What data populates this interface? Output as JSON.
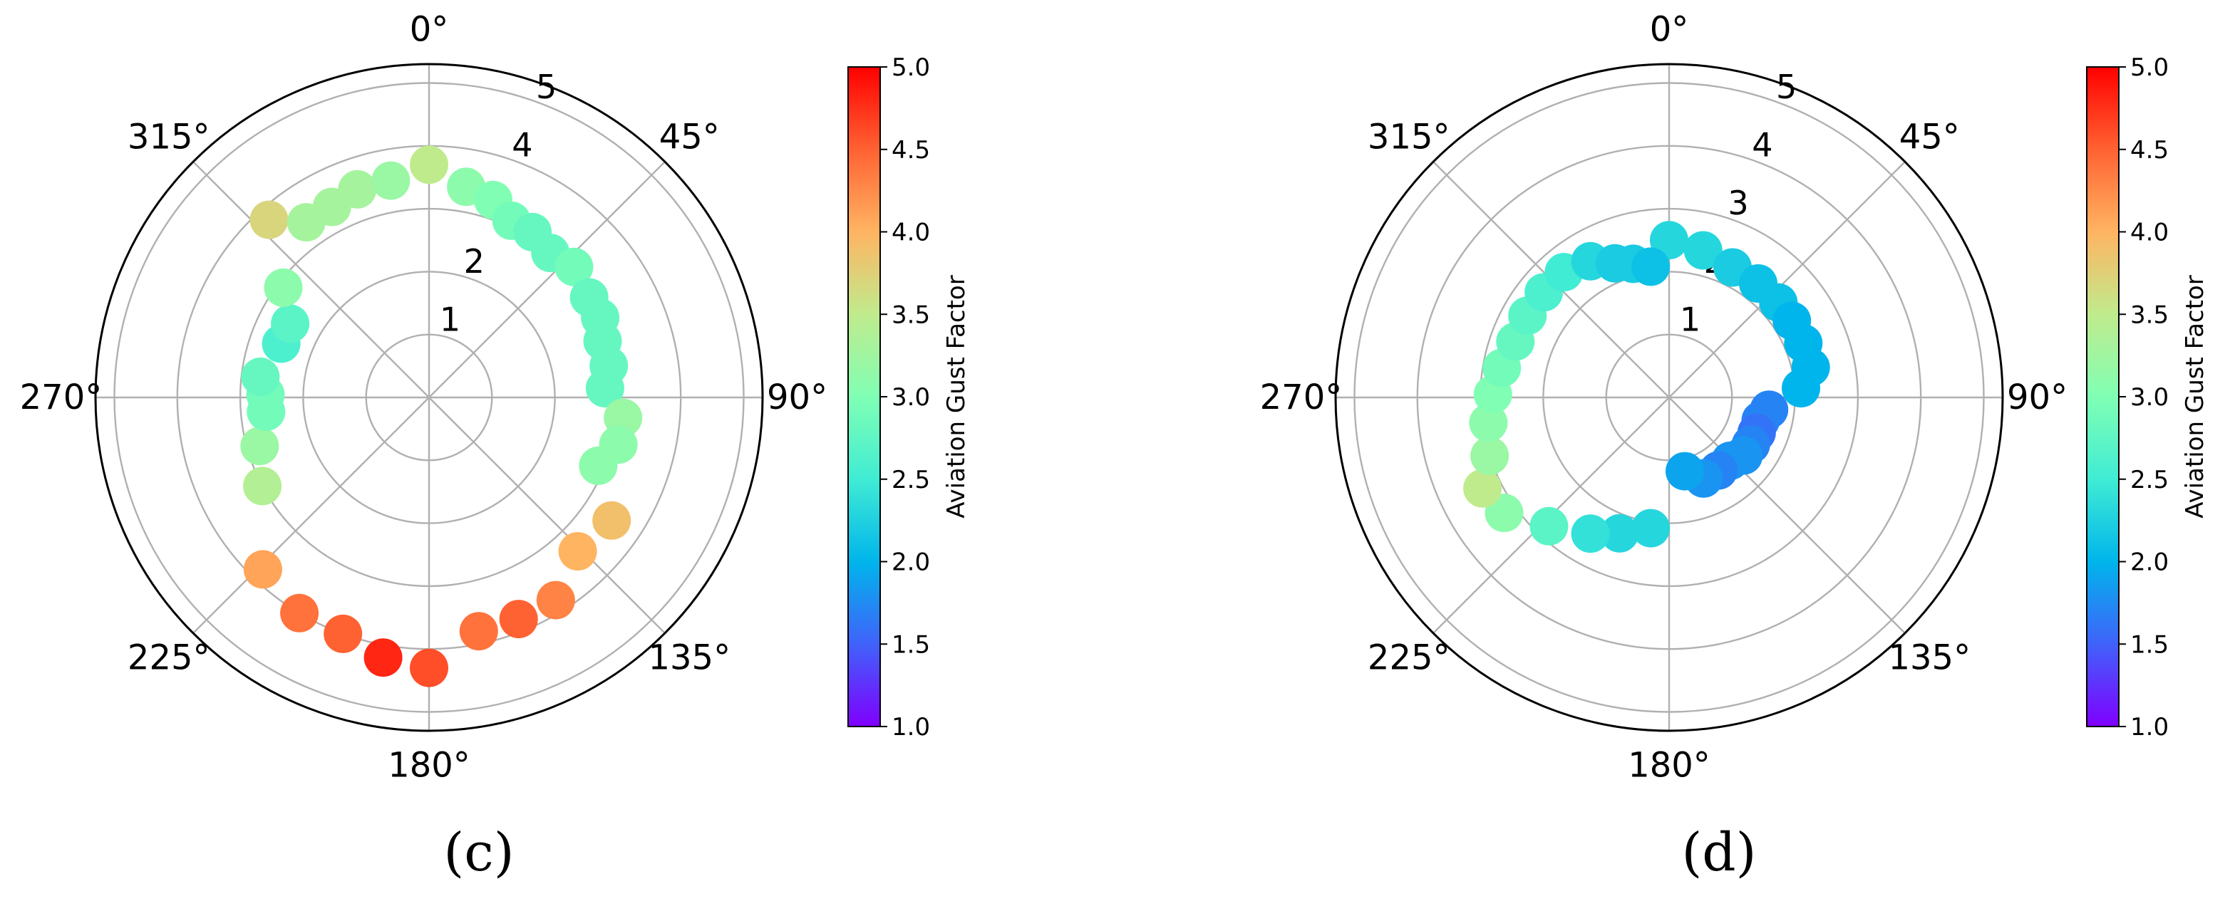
{
  "chart_data": [
    {
      "type": "scatter",
      "panel_label": "(c)",
      "projection": "polar",
      "theta_direction": "clockwise",
      "theta_zero": "top",
      "theta_ticks": [
        "0°",
        "45°",
        "90°",
        "135°",
        "180°",
        "225°",
        "270°",
        "315°"
      ],
      "r_ticks": [
        "1",
        "2",
        "3",
        "4",
        "5"
      ],
      "rlim": [
        0,
        5.3
      ],
      "grid": true,
      "colormap": "rainbow",
      "clim": [
        1.0,
        5.0
      ],
      "colorbar_label": "Aviation Gust Factor",
      "colorbar_ticks": [
        "1.0",
        "1.5",
        "2.0",
        "2.5",
        "3.0",
        "3.5",
        "4.0",
        "4.5",
        "5.0"
      ],
      "points": [
        {
          "theta": 0,
          "r": 3.7,
          "c": 3.5
        },
        {
          "theta": 10,
          "r": 3.4,
          "c": 3.1
        },
        {
          "theta": 18,
          "r": 3.3,
          "c": 3.0
        },
        {
          "theta": 25,
          "r": 3.1,
          "c": 2.9
        },
        {
          "theta": 32,
          "r": 3.1,
          "c": 2.8
        },
        {
          "theta": 40,
          "r": 3.0,
          "c": 2.8
        },
        {
          "theta": 48,
          "r": 3.1,
          "c": 2.9
        },
        {
          "theta": 58,
          "r": 3.0,
          "c": 2.8
        },
        {
          "theta": 65,
          "r": 3.0,
          "c": 2.8
        },
        {
          "theta": 72,
          "r": 2.9,
          "c": 2.8
        },
        {
          "theta": 80,
          "r": 2.9,
          "c": 2.8
        },
        {
          "theta": 87,
          "r": 2.8,
          "c": 2.8
        },
        {
          "theta": 96,
          "r": 3.1,
          "c": 3.2
        },
        {
          "theta": 104,
          "r": 3.1,
          "c": 3.1
        },
        {
          "theta": 112,
          "r": 2.9,
          "c": 3.1
        },
        {
          "theta": 124,
          "r": 3.5,
          "c": 3.9
        },
        {
          "theta": 136,
          "r": 3.4,
          "c": 4.0
        },
        {
          "theta": 148,
          "r": 3.8,
          "c": 4.3
        },
        {
          "theta": 158,
          "r": 3.8,
          "c": 4.5
        },
        {
          "theta": 168,
          "r": 3.8,
          "c": 4.4
        },
        {
          "theta": 180,
          "r": 4.3,
          "c": 4.6
        },
        {
          "theta": 190,
          "r": 4.2,
          "c": 4.8
        },
        {
          "theta": 200,
          "r": 4.0,
          "c": 4.5
        },
        {
          "theta": 211,
          "r": 4.0,
          "c": 4.4
        },
        {
          "theta": 224,
          "r": 3.8,
          "c": 4.1
        },
        {
          "theta": 242,
          "r": 3.0,
          "c": 3.4
        },
        {
          "theta": 254,
          "r": 2.8,
          "c": 3.2
        },
        {
          "theta": 265,
          "r": 2.6,
          "c": 2.9
        },
        {
          "theta": 271,
          "r": 2.6,
          "c": 2.9
        },
        {
          "theta": 277,
          "r": 2.7,
          "c": 2.8
        },
        {
          "theta": 290,
          "r": 2.5,
          "c": 2.6
        },
        {
          "theta": 298,
          "r": 2.5,
          "c": 2.7
        },
        {
          "theta": 307,
          "r": 2.9,
          "c": 3.1
        },
        {
          "theta": 318,
          "r": 3.8,
          "c": 3.7
        },
        {
          "theta": 325,
          "r": 3.4,
          "c": 3.3
        },
        {
          "theta": 333,
          "r": 3.4,
          "c": 3.3
        },
        {
          "theta": 341,
          "r": 3.5,
          "c": 3.3
        },
        {
          "theta": 350,
          "r": 3.5,
          "c": 3.2
        }
      ]
    },
    {
      "type": "scatter",
      "panel_label": "(d)",
      "projection": "polar",
      "theta_direction": "clockwise",
      "theta_zero": "top",
      "theta_ticks": [
        "0°",
        "45°",
        "90°",
        "135°",
        "180°",
        "225°",
        "270°",
        "315°"
      ],
      "r_ticks": [
        "1",
        "2",
        "3",
        "4",
        "5"
      ],
      "rlim": [
        0,
        5.3
      ],
      "grid": true,
      "colormap": "rainbow",
      "clim": [
        1.0,
        5.0
      ],
      "colorbar_label": "Aviation Gust Factor",
      "colorbar_ticks": [
        "1.0",
        "1.5",
        "2.0",
        "2.5",
        "3.0",
        "3.5",
        "4.0",
        "4.5",
        "5.0"
      ],
      "points": [
        {
          "theta": 0,
          "r": 2.5,
          "c": 2.3
        },
        {
          "theta": 13,
          "r": 2.4,
          "c": 2.3
        },
        {
          "theta": 26,
          "r": 2.3,
          "c": 2.2
        },
        {
          "theta": 38,
          "r": 2.3,
          "c": 2.1
        },
        {
          "theta": 49,
          "r": 2.3,
          "c": 2.1
        },
        {
          "theta": 58,
          "r": 2.3,
          "c": 2.0
        },
        {
          "theta": 68,
          "r": 2.3,
          "c": 2.0
        },
        {
          "theta": 78,
          "r": 2.3,
          "c": 2.0
        },
        {
          "theta": 86,
          "r": 2.1,
          "c": 2.0
        },
        {
          "theta": 97,
          "r": 1.6,
          "c": 1.7
        },
        {
          "theta": 104,
          "r": 1.5,
          "c": 1.7
        },
        {
          "theta": 112,
          "r": 1.5,
          "c": 1.6
        },
        {
          "theta": 120,
          "r": 1.5,
          "c": 1.7
        },
        {
          "theta": 128,
          "r": 1.5,
          "c": 1.8
        },
        {
          "theta": 136,
          "r": 1.4,
          "c": 1.8
        },
        {
          "theta": 146,
          "r": 1.4,
          "c": 1.7
        },
        {
          "theta": 157,
          "r": 1.4,
          "c": 1.8
        },
        {
          "theta": 168,
          "r": 1.2,
          "c": 1.9
        },
        {
          "theta": 188,
          "r": 2.1,
          "c": 2.3
        },
        {
          "theta": 200,
          "r": 2.3,
          "c": 2.3
        },
        {
          "theta": 210,
          "r": 2.5,
          "c": 2.4
        },
        {
          "theta": 223,
          "r": 2.8,
          "c": 2.7
        },
        {
          "theta": 235,
          "r": 3.2,
          "c": 3.1
        },
        {
          "theta": 244,
          "r": 3.3,
          "c": 3.5
        },
        {
          "theta": 252,
          "r": 3.0,
          "c": 3.2
        },
        {
          "theta": 262,
          "r": 2.9,
          "c": 3.1
        },
        {
          "theta": 271,
          "r": 2.8,
          "c": 3.0
        },
        {
          "theta": 280,
          "r": 2.7,
          "c": 2.9
        },
        {
          "theta": 290,
          "r": 2.6,
          "c": 2.8
        },
        {
          "theta": 300,
          "r": 2.6,
          "c": 2.7
        },
        {
          "theta": 310,
          "r": 2.6,
          "c": 2.6
        },
        {
          "theta": 320,
          "r": 2.6,
          "c": 2.5
        },
        {
          "theta": 330,
          "r": 2.5,
          "c": 2.3
        },
        {
          "theta": 338,
          "r": 2.3,
          "c": 2.2
        },
        {
          "theta": 345,
          "r": 2.2,
          "c": 2.2
        },
        {
          "theta": 352,
          "r": 2.1,
          "c": 2.1
        }
      ]
    }
  ]
}
